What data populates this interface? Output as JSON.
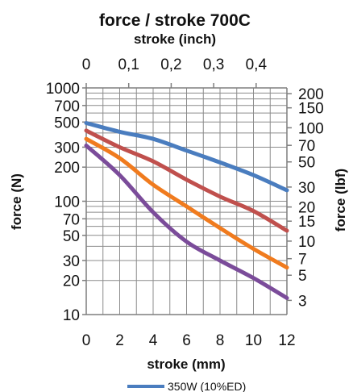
{
  "chart_data": {
    "type": "line",
    "title": "force / stroke 700C",
    "top_axis_label": "stroke (inch)",
    "xlabel": "stroke (mm)",
    "ylabel": "force (N)",
    "y2label": "force (lbf)",
    "x_scale": "linear",
    "y_scale": "log",
    "xlim": [
      0,
      12
    ],
    "ylim": [
      10,
      1000
    ],
    "x_ticks": [
      "0",
      "2",
      "4",
      "6",
      "8",
      "10",
      "12"
    ],
    "x_tick_values": [
      0,
      2,
      4,
      6,
      8,
      10,
      12
    ],
    "top_ticks": [
      "0",
      "0,1",
      "0,2",
      "0,3",
      "0,4"
    ],
    "top_tick_values": [
      0,
      0.1,
      0.2,
      0.3,
      0.4
    ],
    "y_ticks": [
      "10",
      "20",
      "30",
      "50",
      "70",
      "100",
      "200",
      "300",
      "500",
      "700",
      "1000"
    ],
    "y_tick_values": [
      10,
      20,
      30,
      50,
      70,
      100,
      200,
      300,
      500,
      700,
      1000
    ],
    "y2_ticks": [
      "3",
      "5",
      "7",
      "10",
      "15",
      "20",
      "30",
      "50",
      "70",
      "100",
      "150",
      "200"
    ],
    "y2_tick_values": [
      3,
      5,
      7,
      10,
      15,
      20,
      30,
      50,
      70,
      100,
      150,
      200
    ],
    "grid": true,
    "legend_position": "bottom",
    "x": [
      0,
      2,
      4,
      6,
      8,
      10,
      12
    ],
    "series": [
      {
        "name": "350W (10%ED)",
        "color": "#4a7dbf",
        "values": [
          490,
          410,
          355,
          280,
          220,
          170,
          125
        ]
      },
      {
        "color": "#c0504d",
        "values": [
          420,
          300,
          225,
          155,
          110,
          82,
          55
        ]
      },
      {
        "color": "#f07b1e",
        "values": [
          355,
          240,
          140,
          90,
          58,
          38,
          26
        ]
      },
      {
        "color": "#7b4c9a",
        "values": [
          310,
          170,
          80,
          44,
          30,
          21,
          14
        ]
      }
    ]
  }
}
